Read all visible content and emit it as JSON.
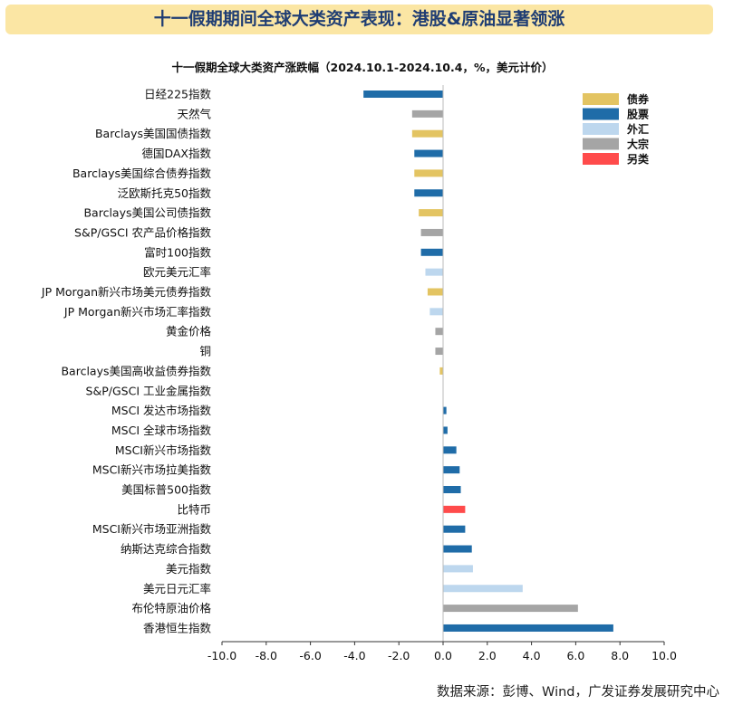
{
  "header": {
    "title": "十一假期期间全球大类资产表现：港股&原油显著领涨"
  },
  "chart_data": {
    "type": "bar",
    "orientation": "horizontal",
    "title": "十一假期全球大类资产涨跌幅（2024.10.1-2024.10.4，%，美元计价）",
    "xlim": [
      -10,
      10
    ],
    "xticks": [
      "-10.0",
      "-8.0",
      "-6.0",
      "-4.0",
      "-2.0",
      "0.0",
      "2.0",
      "4.0",
      "6.0",
      "8.0",
      "10.0"
    ],
    "xtick_values": [
      -10,
      -8,
      -6,
      -4,
      -2,
      0,
      2,
      4,
      6,
      8,
      10
    ],
    "grid": false,
    "legend_position": "top-right",
    "legend": [
      {
        "key": "bond",
        "label": "债券",
        "color": "#e3c462"
      },
      {
        "key": "equity",
        "label": "股票",
        "color": "#1f6ca8"
      },
      {
        "key": "fx",
        "label": "外汇",
        "color": "#bdd7ee"
      },
      {
        "key": "commodity",
        "label": "大宗",
        "color": "#a5a5a5"
      },
      {
        "key": "alt",
        "label": "另类",
        "color": "#ff4b4b"
      }
    ],
    "categories": [
      "日经225指数",
      "天然气",
      "Barclays美国国债指数",
      "德国DAX指数",
      "Barclays美国综合债券指数",
      "泛欧斯托克50指数",
      "Barclays美国公司债指数",
      "S&P/GSCI 农产品价格指数",
      "富时100指数",
      "欧元美元汇率",
      "JP Morgan新兴市场美元债券指数",
      "JP Morgan新兴市场汇率指数",
      "黄金价格",
      "铜",
      "Barclays美国高收益债券指数",
      "S&P/GSCI 工业金属指数",
      "MSCI 发达市场指数",
      "MSCI 全球市场指数",
      "MSCI新兴市场指数",
      "MSCI新兴市场拉美指数",
      "美国标普500指数",
      "比特币",
      "MSCI新兴市场亚洲指数",
      "纳斯达克综合指数",
      "美元指数",
      "美元日元汇率",
      "布伦特原油价格",
      "香港恒生指数"
    ],
    "values": [
      -3.6,
      -1.4,
      -1.4,
      -1.3,
      -1.3,
      -1.3,
      -1.1,
      -1.0,
      -1.0,
      -0.8,
      -0.7,
      -0.6,
      -0.35,
      -0.35,
      -0.15,
      0.0,
      0.15,
      0.2,
      0.6,
      0.75,
      0.8,
      1.0,
      1.0,
      1.3,
      1.35,
      3.6,
      6.1,
      7.7
    ],
    "groups": [
      "equity",
      "commodity",
      "bond",
      "equity",
      "bond",
      "equity",
      "bond",
      "commodity",
      "equity",
      "fx",
      "bond",
      "fx",
      "commodity",
      "commodity",
      "bond",
      "commodity",
      "equity",
      "equity",
      "equity",
      "equity",
      "equity",
      "alt",
      "equity",
      "equity",
      "fx",
      "fx",
      "commodity",
      "equity"
    ]
  },
  "footer": {
    "source": "数据来源：彭博、Wind，广发证券发展研究中心"
  }
}
